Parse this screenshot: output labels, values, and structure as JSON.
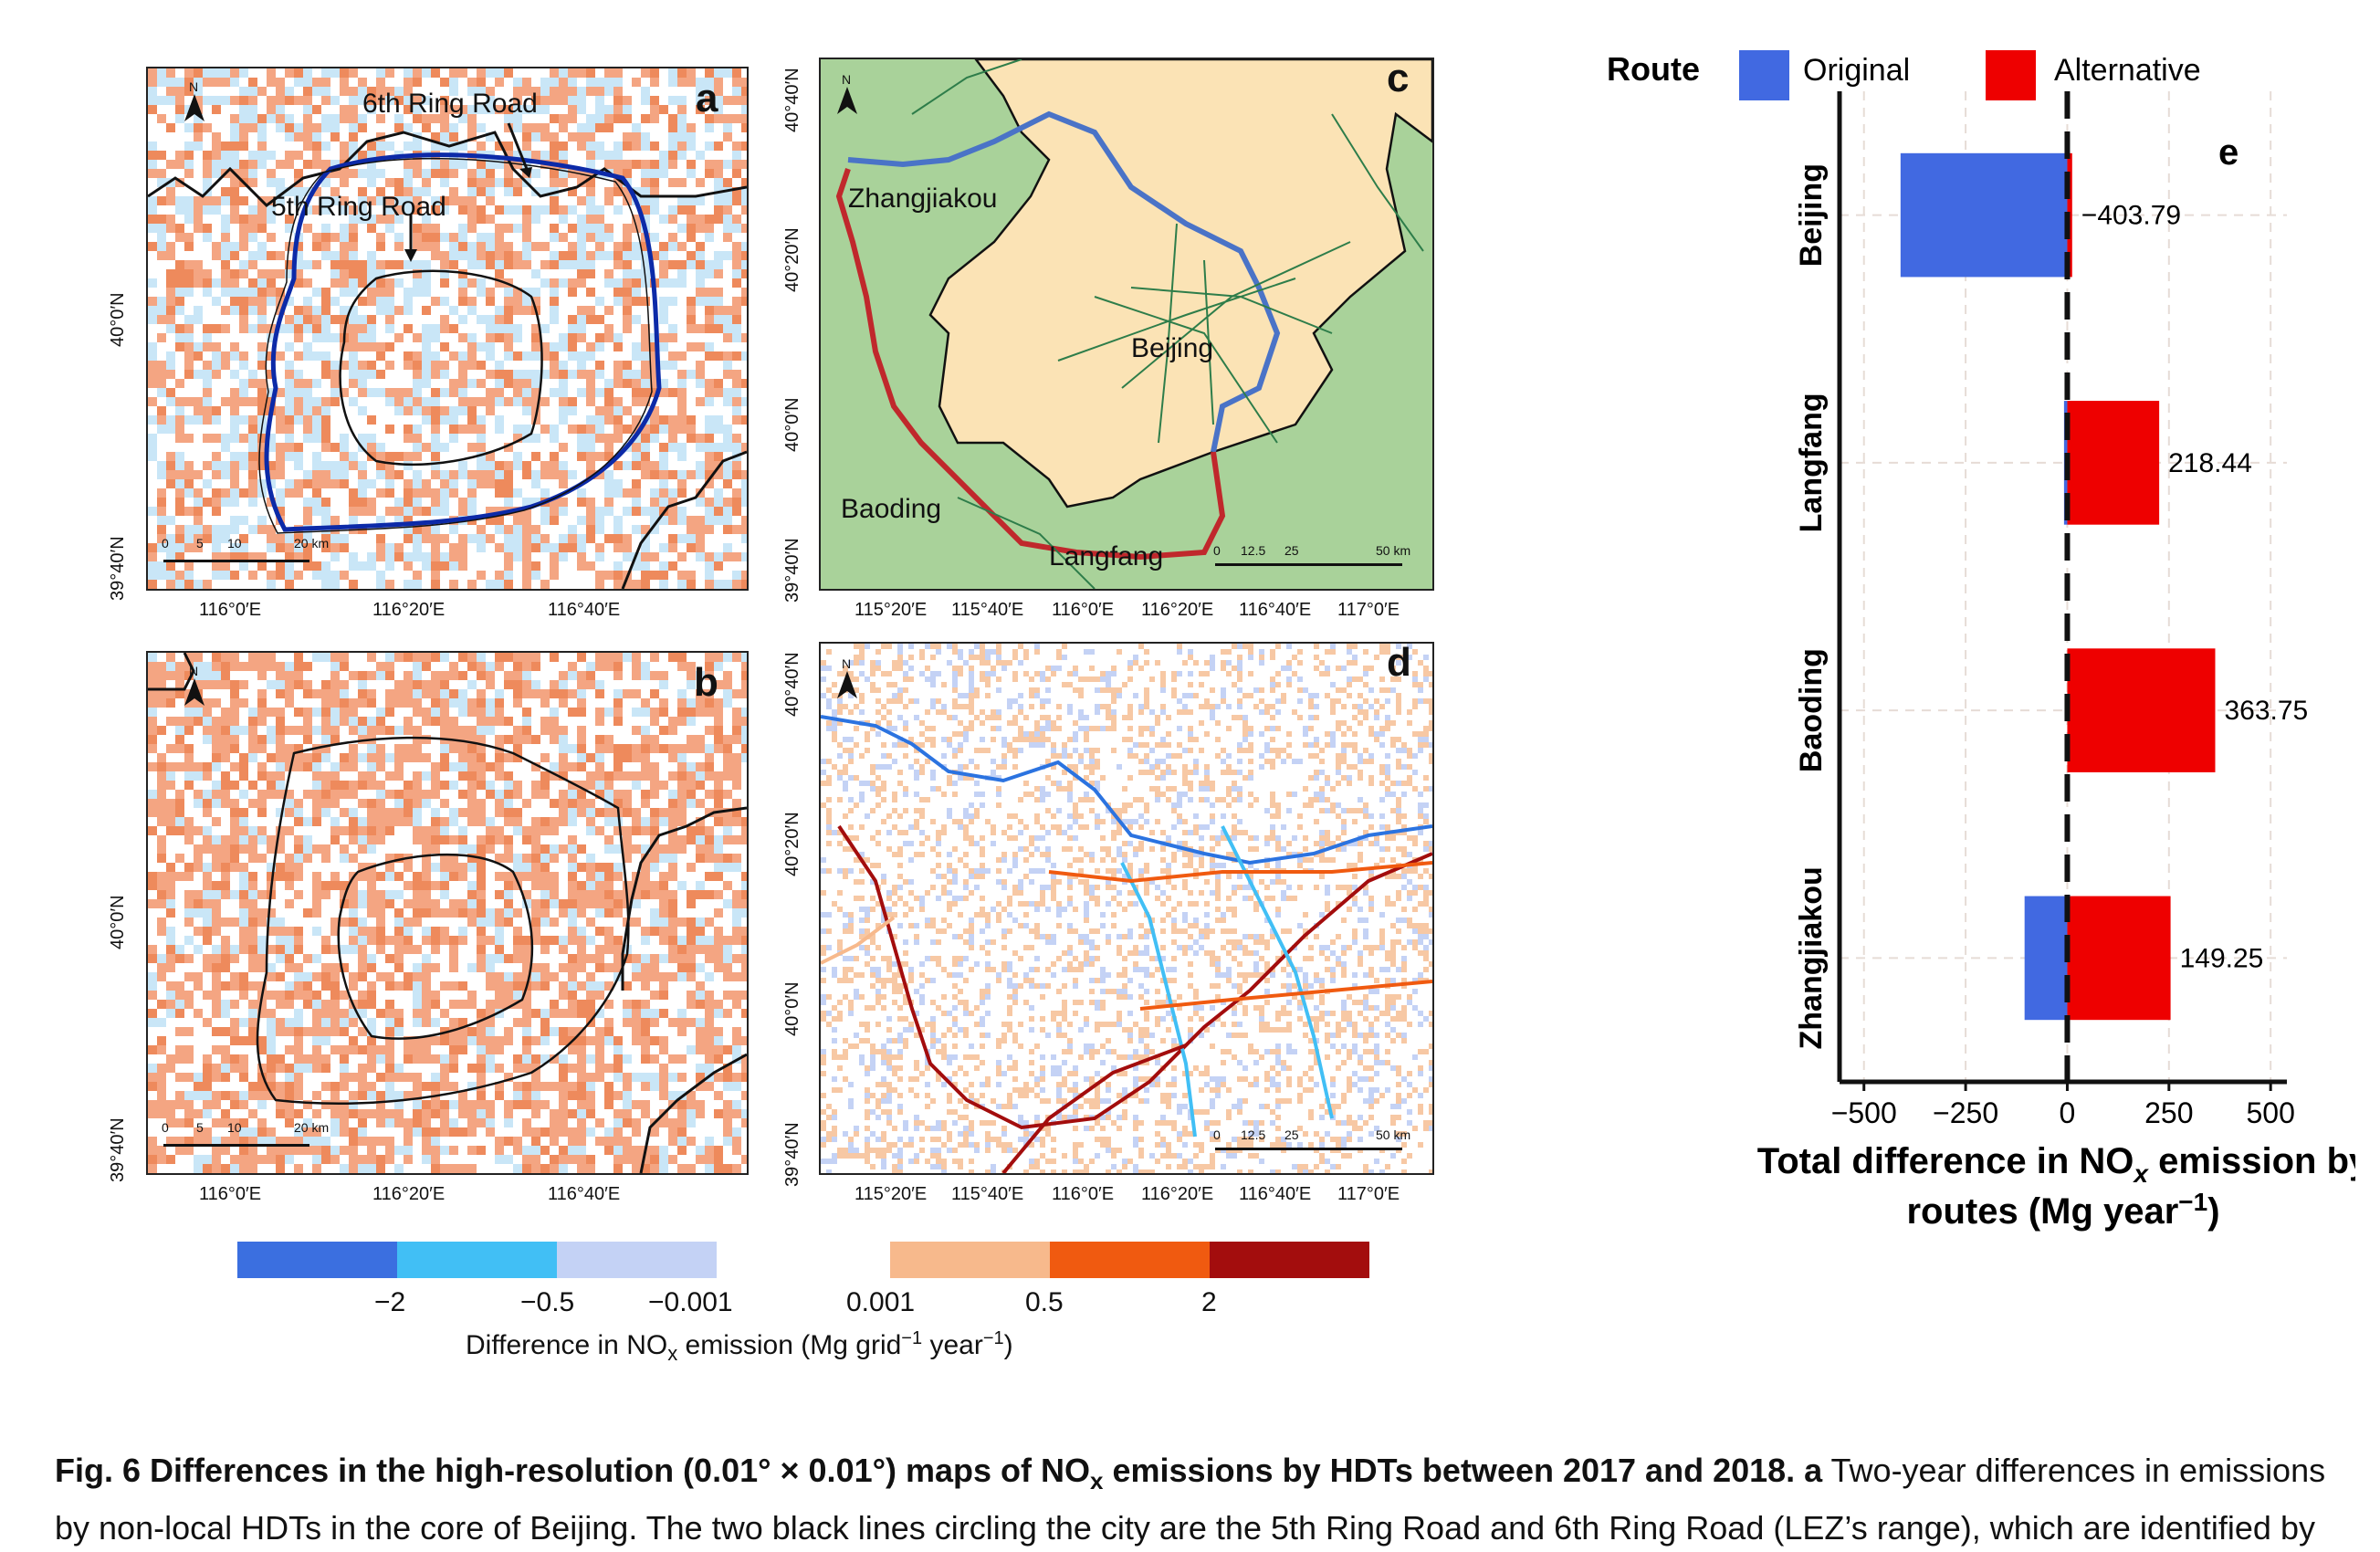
{
  "panels": {
    "a": {
      "letter": "a",
      "ring6": "6th Ring Road",
      "ring5": "5th Ring Road",
      "north": "N",
      "scale": [
        "0",
        "5",
        "10",
        "20 km"
      ],
      "xticks": [
        "116°0′E",
        "116°20′E",
        "116°40′E"
      ],
      "yticks": [
        "40°0′N",
        "39°40′N"
      ]
    },
    "b": {
      "letter": "b",
      "north": "N",
      "scale": [
        "0",
        "5",
        "10",
        "20 km"
      ],
      "xticks": [
        "116°0′E",
        "116°20′E",
        "116°40′E"
      ],
      "yticks": [
        "40°0′N",
        "39°40′N"
      ]
    },
    "c": {
      "letter": "c",
      "north": "N",
      "cities": [
        "Zhangjiakou",
        "Beijing",
        "Baoding",
        "Langfang"
      ],
      "scale": [
        "0",
        "12.5",
        "25",
        "50 km"
      ],
      "xticks": [
        "115°20′E",
        "115°40′E",
        "116°0′E",
        "116°20′E",
        "116°40′E",
        "117°0′E"
      ],
      "yticks": [
        "40°40′N",
        "40°20′N",
        "40°0′N",
        "39°40′N"
      ]
    },
    "d": {
      "letter": "d",
      "north": "N",
      "scale": [
        "0",
        "12.5",
        "25",
        "50 km"
      ],
      "xticks": [
        "115°20′E",
        "115°40′E",
        "116°0′E",
        "116°20′E",
        "116°40′E",
        "117°0′E"
      ],
      "yticks": [
        "40°40′N",
        "40°20′N",
        "40°0′N",
        "39°40′N"
      ]
    }
  },
  "legend": {
    "colors": [
      "#3b6fe0",
      "#41bff5",
      "#c4d2f5",
      "#f7b98c",
      "#f05a10",
      "#a30d0d"
    ],
    "ticks": [
      "−2",
      "−0.5",
      "−0.001",
      "0.001",
      "0.5",
      "2"
    ],
    "title": "Difference in NO",
    "title_sub": "x",
    "title_rest": " emission (Mg grid",
    "title_sup": "−1",
    "title_end": " year",
    "title_sup2": "−1",
    "title_close": ")"
  },
  "chart_data": {
    "type": "bar",
    "panel_letter": "e",
    "legend_title": "Route",
    "legend_position": "top",
    "categories": [
      "Beijing",
      "Langfang",
      "Baoding",
      "Zhangjiakou"
    ],
    "series": [
      {
        "name": "Original",
        "color": "#4169e1",
        "values": [
          -410,
          -8,
          0,
          -105
        ]
      },
      {
        "name": "Alternative",
        "color": "#ee0000",
        "values": [
          12,
          226,
          363.75,
          254
        ]
      }
    ],
    "data_labels": [
      "−403.79",
      "218.44",
      "363.75",
      "149.25"
    ],
    "xlim": [
      -560,
      540
    ],
    "xticks": [
      -500,
      -250,
      0,
      250,
      500
    ],
    "xtick_labels": [
      "−500",
      "−250",
      "0",
      "250",
      "500"
    ],
    "xlabel_line1": "Total difference in NO",
    "xlabel_sub": "x",
    "xlabel_line1_end": " emission by",
    "xlabel_line2": "routes (Mg year",
    "xlabel_sup": "−1",
    "xlabel_close": ")",
    "grid": true
  },
  "caption": {
    "bold": "Fig. 6 Differences in the high-resolution (0.01° × 0.01°) maps of NO",
    "bold_sub": "x",
    "bold_end": " emissions by HDTs between 2017 and 2018.",
    "letter": " a",
    "text": " Two-year differences in emissions by non-local HDTs in the core of Beijing. The two black lines circling the city are the 5th Ring Road and 6th Ring Road (LEZ’s range), which are identified by"
  }
}
